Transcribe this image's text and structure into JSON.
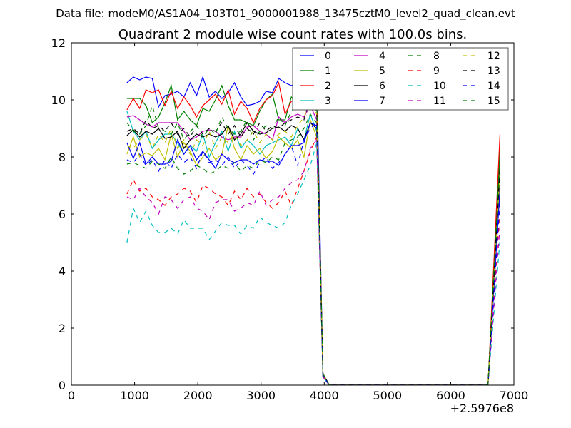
{
  "chart_data": {
    "type": "line",
    "suptitle": "Data file: modeM0/AS1A04_103T01_9000001988_13475cztM0_level2_quad_clean.evt",
    "title": "Quadrant 2 module wise count rates with 100.0s bins.",
    "xlabel": "",
    "ylabel": "",
    "x_offset_label": "+2.5976e8",
    "xlim": [
      0,
      7000
    ],
    "ylim": [
      0,
      12
    ],
    "xticks": [
      "0",
      "1000",
      "2000",
      "3000",
      "4000",
      "5000",
      "6000",
      "7000"
    ],
    "yticks": [
      "0",
      "2",
      "4",
      "6",
      "8",
      "10",
      "12"
    ],
    "grid": false,
    "legend_placement": "top-right",
    "legend_columns": 4,
    "x": [
      880,
      980,
      1080,
      1180,
      1280,
      1380,
      1480,
      1580,
      1680,
      1780,
      1880,
      1980,
      2080,
      2180,
      2280,
      2380,
      2480,
      2580,
      2680,
      2780,
      2880,
      2980,
      3080,
      3180,
      3280,
      3380,
      3480,
      3580,
      3680,
      3780,
      3880,
      3980,
      4080,
      6590,
      6780
    ],
    "series": [
      {
        "name": "0",
        "color": "#0000ff",
        "style": "solid",
        "values": [
          10.6,
          10.8,
          10.7,
          10.8,
          10.75,
          9.75,
          10.15,
          10.2,
          10.3,
          10.1,
          10.6,
          10.15,
          10.8,
          10.1,
          10.3,
          10.05,
          10.25,
          10.6,
          10.1,
          9.8,
          9.85,
          9.95,
          10.3,
          10.25,
          10.75,
          10.6,
          10.5,
          10.6,
          10.55,
          11.3,
          10.9,
          0.4,
          0,
          0,
          7.0
        ]
      },
      {
        "name": "1",
        "color": "#008000",
        "style": "solid",
        "values": [
          10.05,
          10.05,
          10.05,
          9.8,
          9.2,
          9.4,
          9.9,
          10.5,
          9.3,
          9.6,
          9.3,
          9.1,
          9.7,
          9.6,
          10.0,
          10.5,
          9.8,
          9.3,
          9.3,
          9.2,
          9.1,
          9.6,
          10.0,
          10.2,
          9.3,
          9.3,
          10.1,
          9.8,
          10.3,
          10.6,
          10.2,
          0.3,
          0,
          0,
          8.3
        ]
      },
      {
        "name": "2",
        "color": "#ff0000",
        "style": "solid",
        "values": [
          9.65,
          10.05,
          9.7,
          10.35,
          10.25,
          10.35,
          9.8,
          10.3,
          9.7,
          10.1,
          9.8,
          9.4,
          9.8,
          10.0,
          10.2,
          9.85,
          10.35,
          9.5,
          9.95,
          9.7,
          9.2,
          9.7,
          10.0,
          10.15,
          10.6,
          9.5,
          9.95,
          10.0,
          10.3,
          11.1,
          10.0,
          0.4,
          0,
          0,
          8.8
        ]
      },
      {
        "name": "3",
        "color": "#00bfbf",
        "style": "solid",
        "values": [
          9.6,
          8.9,
          8.6,
          8.9,
          8.3,
          8.6,
          8.8,
          8.8,
          8.5,
          8.1,
          8.4,
          8.2,
          8.8,
          8.0,
          8.5,
          8.9,
          8.2,
          8.9,
          8.3,
          8.6,
          8.4,
          8.1,
          8.4,
          8.5,
          8.6,
          8.7,
          8.4,
          9.0,
          8.6,
          9.5,
          8.9,
          0.3,
          0,
          0,
          7.4
        ]
      },
      {
        "name": "4",
        "color": "#bf00bf",
        "style": "solid",
        "values": [
          9.4,
          9.45,
          9.3,
          9.15,
          9.05,
          9.2,
          9.2,
          9.2,
          9.2,
          8.9,
          8.6,
          8.7,
          8.9,
          8.95,
          8.9,
          8.7,
          8.6,
          8.7,
          8.7,
          9.05,
          9.1,
          8.9,
          8.8,
          8.6,
          9.4,
          9.2,
          9.4,
          9.5,
          9.4,
          9.8,
          9.3,
          0.35,
          0,
          0,
          7.2
        ]
      },
      {
        "name": "5",
        "color": "#bfbf00",
        "style": "solid",
        "values": [
          8.1,
          8.7,
          8.0,
          8.15,
          8.05,
          8.3,
          7.9,
          8.8,
          8.0,
          8.5,
          8.2,
          7.7,
          8.0,
          8.3,
          7.9,
          8.1,
          9.1,
          8.3,
          7.9,
          8.4,
          8.1,
          8.3,
          7.95,
          8.2,
          8.7,
          8.5,
          8.3,
          8.6,
          8.0,
          9.3,
          8.7,
          0.3,
          0,
          0,
          7.2
        ]
      },
      {
        "name": "6",
        "color": "#000000",
        "style": "solid",
        "values": [
          8.75,
          8.95,
          8.7,
          8.9,
          8.8,
          9.0,
          8.65,
          8.7,
          8.9,
          8.3,
          8.6,
          8.8,
          8.7,
          8.8,
          8.7,
          8.8,
          9.1,
          8.6,
          8.8,
          9.2,
          8.9,
          8.8,
          8.85,
          9.0,
          9.05,
          8.9,
          9.1,
          9.0,
          8.6,
          9.2,
          9.0,
          0.4,
          0,
          0,
          7.7
        ]
      },
      {
        "name": "7",
        "color": "#0000ff",
        "style": "solid",
        "values": [
          8.5,
          7.95,
          8.5,
          7.75,
          8.0,
          7.75,
          7.75,
          7.85,
          8.6,
          8.1,
          8.4,
          7.9,
          8.2,
          7.9,
          7.6,
          8.1,
          7.9,
          7.8,
          7.9,
          7.9,
          7.75,
          7.9,
          7.85,
          7.85,
          7.7,
          8.1,
          8.4,
          8.4,
          8.5,
          9.2,
          9.1,
          0.3,
          0,
          0,
          6.9
        ]
      },
      {
        "name": "8",
        "color": "#008000",
        "style": "dashed",
        "values": [
          7.75,
          7.8,
          7.7,
          7.6,
          7.85,
          7.75,
          7.6,
          8.0,
          7.6,
          7.4,
          7.5,
          7.7,
          7.6,
          7.4,
          7.5,
          7.7,
          7.6,
          7.8,
          7.5,
          7.7,
          7.6,
          7.9,
          7.8,
          8.0,
          7.9,
          8.5,
          8.6,
          8.7,
          9.0,
          9.5,
          9.2,
          0.3,
          0,
          0,
          7.8
        ]
      },
      {
        "name": "9",
        "color": "#ff0000",
        "style": "dashed",
        "values": [
          6.7,
          7.2,
          6.8,
          6.9,
          6.6,
          6.5,
          6.3,
          6.6,
          6.7,
          6.9,
          6.8,
          6.4,
          7.0,
          6.9,
          6.7,
          6.6,
          6.3,
          6.8,
          6.5,
          6.9,
          6.6,
          6.7,
          6.4,
          6.2,
          6.4,
          6.8,
          6.3,
          6.9,
          7.5,
          8.2,
          8.7,
          0.4,
          0,
          0,
          6.2
        ]
      },
      {
        "name": "10",
        "color": "#00bfbf",
        "style": "dashed",
        "values": [
          5.0,
          6.2,
          5.7,
          6.1,
          5.6,
          5.35,
          5.35,
          5.5,
          5.3,
          5.8,
          5.5,
          5.5,
          5.5,
          5.1,
          5.4,
          5.7,
          5.6,
          5.6,
          5.3,
          5.6,
          5.5,
          5.9,
          5.7,
          5.6,
          5.5,
          5.7,
          6.3,
          6.7,
          7.2,
          7.7,
          8.5,
          0.3,
          0,
          0,
          5.1
        ]
      },
      {
        "name": "11",
        "color": "#bf00bf",
        "style": "dashed",
        "values": [
          6.6,
          6.5,
          6.9,
          6.6,
          6.4,
          6.0,
          6.6,
          6.5,
          6.2,
          6.5,
          6.6,
          6.2,
          6.1,
          5.8,
          6.4,
          6.5,
          6.5,
          6.1,
          6.2,
          6.4,
          6.3,
          6.8,
          6.3,
          6.5,
          6.6,
          6.9,
          7.1,
          7.2,
          7.5,
          8.3,
          8.6,
          0.3,
          0,
          0,
          5.6
        ]
      },
      {
        "name": "12",
        "color": "#bfbf00",
        "style": "dashed",
        "values": [
          8.4,
          8.3,
          8.6,
          8.8,
          8.3,
          8.8,
          8.5,
          9.0,
          8.3,
          8.6,
          8.1,
          8.6,
          8.4,
          8.9,
          8.3,
          8.7,
          8.5,
          8.8,
          8.4,
          8.6,
          8.9,
          8.5,
          8.8,
          8.6,
          8.8,
          8.9,
          8.7,
          9.1,
          9.4,
          9.9,
          9.5,
          0.4,
          0,
          0,
          7.5
        ]
      },
      {
        "name": "13",
        "color": "#000000",
        "style": "dashed",
        "values": [
          8.9,
          9.0,
          8.8,
          9.3,
          9.0,
          9.1,
          8.9,
          9.2,
          8.8,
          9.0,
          8.7,
          9.1,
          8.8,
          9.0,
          8.9,
          9.2,
          8.8,
          9.1,
          8.7,
          9.0,
          8.8,
          9.2,
          8.9,
          9.1,
          9.0,
          9.2,
          9.3,
          9.4,
          9.3,
          10.1,
          9.6,
          0.4,
          0,
          0,
          7.6
        ]
      },
      {
        "name": "14",
        "color": "#0000ff",
        "style": "dashed",
        "values": [
          7.9,
          7.8,
          8.1,
          7.7,
          7.9,
          7.5,
          7.9,
          7.6,
          8.1,
          7.8,
          8.0,
          7.6,
          8.2,
          7.8,
          7.9,
          7.7,
          8.0,
          7.6,
          7.9,
          7.7,
          7.4,
          7.8,
          8.0,
          7.6,
          7.8,
          8.1,
          8.4,
          7.7,
          8.6,
          9.0,
          9.2,
          0.35,
          0,
          0,
          6.5
        ]
      },
      {
        "name": "15",
        "color": "#008000",
        "style": "dashed",
        "values": [
          9.2,
          8.9,
          8.8,
          9.1,
          9.8,
          9.0,
          8.9,
          8.8,
          9.2,
          8.6,
          8.9,
          9.1,
          8.7,
          9.0,
          8.8,
          9.4,
          9.0,
          8.8,
          8.9,
          9.3,
          8.6,
          8.9,
          9.1,
          9.0,
          9.4,
          9.1,
          9.6,
          9.9,
          10.2,
          10.6,
          10.0,
          0.4,
          0,
          0,
          8.2
        ]
      }
    ]
  }
}
